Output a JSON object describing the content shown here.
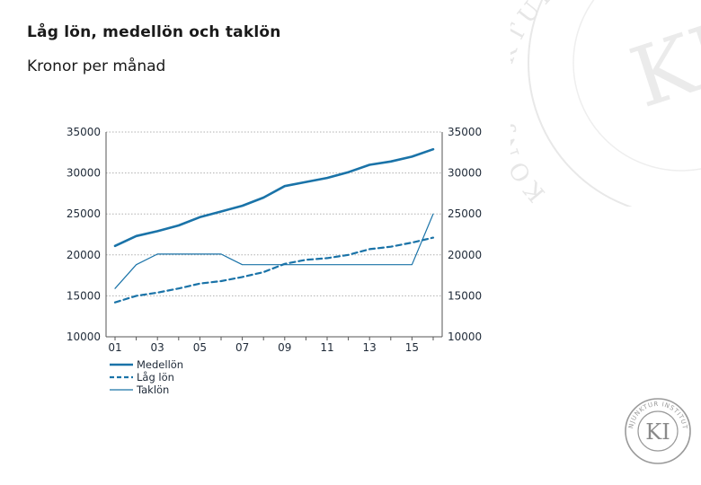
{
  "title": "Låg lön, medellön och taklön",
  "subtitle": "Kronor per månad",
  "brand": {
    "watermark_text": "KONJUNKTURINSTITUTET",
    "watermark_initials": "KI",
    "logo_initials": "KI",
    "logo_ring_text": "KONJUNKTUR INSTITUTET"
  },
  "colors": {
    "series": "#1a73a8",
    "grid": "#b0b0b0",
    "axis": "#555555",
    "watermark": "#e6e6e6",
    "logo": "#9a9a9a"
  },
  "chart_data": {
    "type": "line",
    "title": "Låg lön, medellön och taklön",
    "ylabel": "Kronor per månad",
    "xlabel": "",
    "x": [
      2001,
      2002,
      2003,
      2004,
      2005,
      2006,
      2007,
      2008,
      2009,
      2010,
      2011,
      2012,
      2013,
      2014,
      2015,
      2016
    ],
    "x_tick_labels": [
      "01",
      "03",
      "05",
      "07",
      "09",
      "11",
      "13",
      "15"
    ],
    "x_tick_values": [
      2001,
      2003,
      2005,
      2007,
      2009,
      2011,
      2013,
      2015
    ],
    "ylim": [
      10000,
      35000
    ],
    "y_ticks": [
      10000,
      15000,
      20000,
      25000,
      30000,
      35000
    ],
    "y_tick_labels": [
      "10000",
      "15000",
      "20000",
      "25000",
      "30000",
      "35000"
    ],
    "dual_y_axis": true,
    "grid": "horizontal-dotted",
    "legend_position": "bottom-left",
    "series": [
      {
        "name": "Medellön",
        "style": "thick-solid",
        "values": [
          21100,
          22300,
          22900,
          23600,
          24600,
          25300,
          26000,
          27000,
          28400,
          28900,
          29400,
          30100,
          31000,
          31400,
          32000,
          32900
        ]
      },
      {
        "name": "Låg lön",
        "style": "dashed",
        "values": [
          14200,
          15000,
          15400,
          15900,
          16500,
          16800,
          17300,
          17900,
          18900,
          19400,
          19600,
          20000,
          20700,
          21000,
          21500,
          22100
        ]
      },
      {
        "name": "Taklön",
        "style": "thin-solid",
        "values": [
          15900,
          18800,
          20100,
          20100,
          20100,
          20100,
          18800,
          18800,
          18800,
          18800,
          18800,
          18800,
          18800,
          18800,
          18800,
          25000
        ]
      }
    ]
  }
}
